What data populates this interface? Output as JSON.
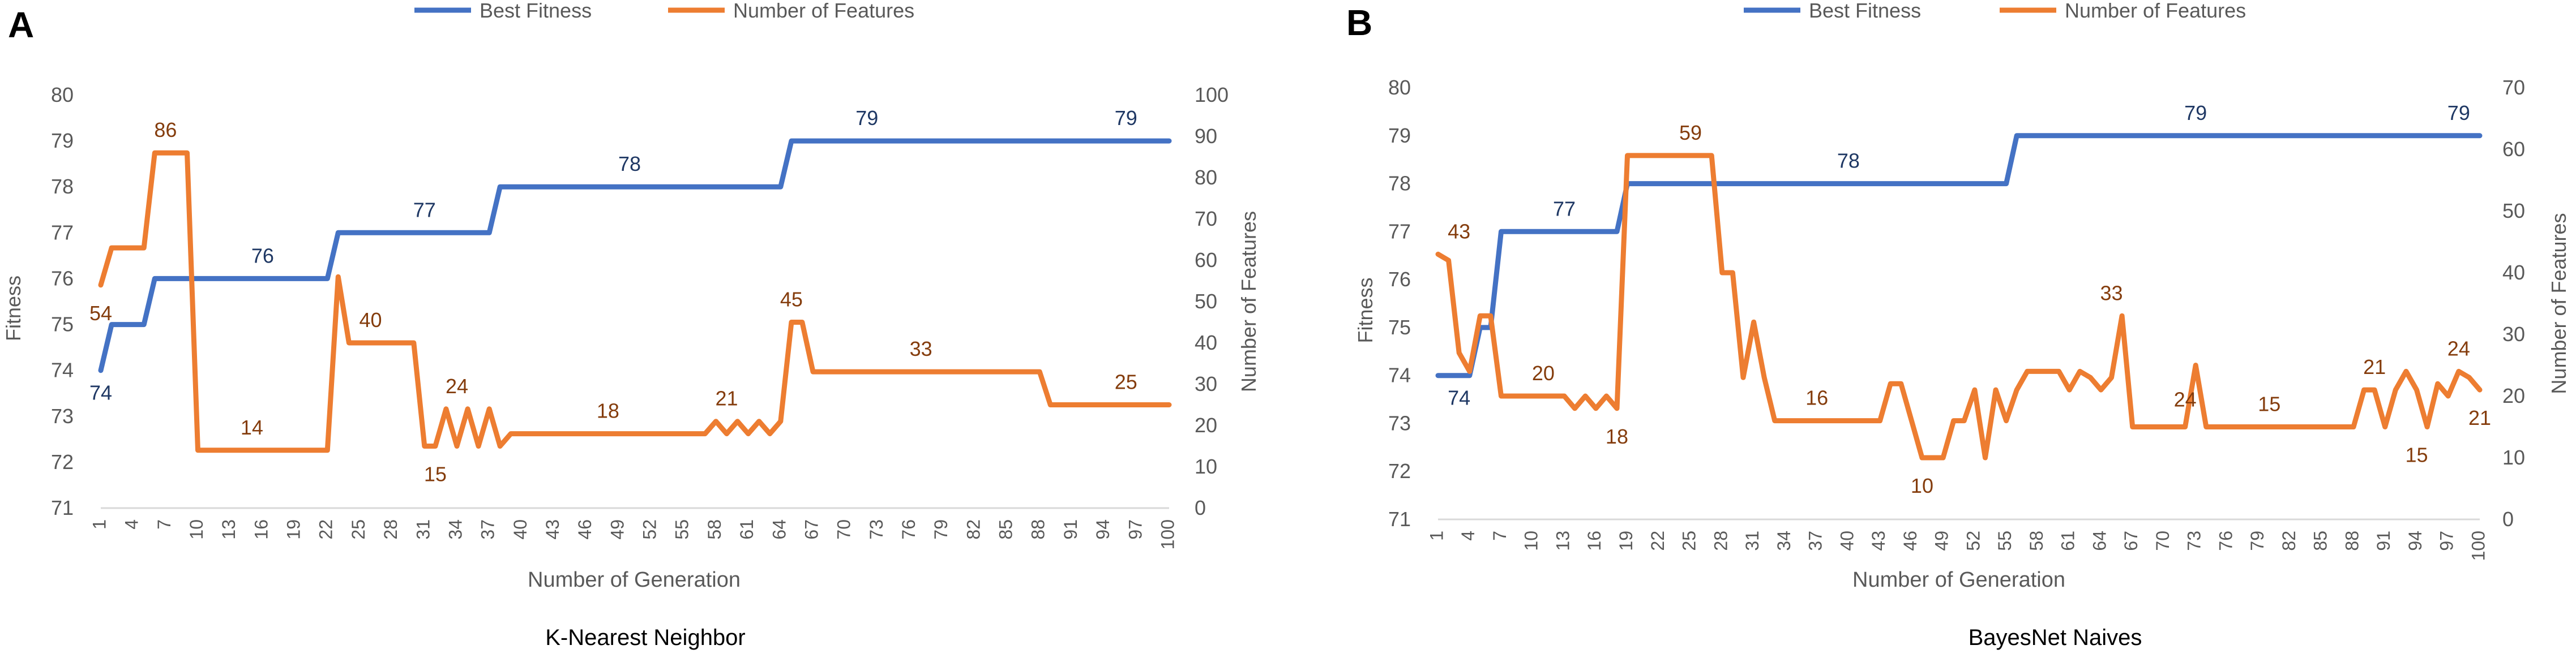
{
  "colors": {
    "fitness": "#4472C4",
    "features": "#ED7D31",
    "fitness_label": "#1F3864",
    "features_label": "#843C0C",
    "axis_text": "#595959",
    "grid": "#D9D9D9"
  },
  "legend": {
    "fitness": "Best Fitness",
    "features": "Number of Features"
  },
  "chart_data": [
    {
      "panel_letter": "A",
      "type": "line",
      "title": "K-Nearest Neighbor",
      "xlabel": "Number of Generation",
      "ylabel_left": "Fitness",
      "ylabel_right": "Number of Features",
      "xlim": [
        1,
        100
      ],
      "ylim_left": [
        71,
        80
      ],
      "ylim_right": [
        0,
        100
      ],
      "yticks_left": [
        71,
        72,
        73,
        74,
        75,
        76,
        77,
        78,
        79,
        80
      ],
      "yticks_right": [
        0,
        10,
        20,
        30,
        40,
        50,
        60,
        70,
        80,
        90,
        100
      ],
      "xticks": [
        1,
        4,
        7,
        10,
        13,
        16,
        19,
        22,
        25,
        28,
        31,
        34,
        37,
        40,
        43,
        46,
        49,
        52,
        55,
        58,
        61,
        64,
        67,
        70,
        73,
        76,
        79,
        82,
        85,
        88,
        91,
        94,
        97,
        100
      ],
      "grid": false,
      "series": [
        {
          "name": "Best Fitness",
          "axis": "left",
          "x": [
            1,
            2,
            4,
            5,
            6,
            7,
            22,
            23,
            37,
            38,
            64,
            65,
            100
          ],
          "y": [
            74,
            75,
            75,
            75,
            76,
            76,
            76,
            77,
            77,
            78,
            78,
            79,
            79
          ]
        },
        {
          "name": "Number of Features",
          "axis": "right",
          "x": [
            1,
            2,
            3,
            4,
            5,
            6,
            7,
            8,
            9,
            10,
            11,
            20,
            21,
            22,
            23,
            24,
            25,
            26,
            27,
            28,
            29,
            30,
            31,
            32,
            33,
            34,
            35,
            36,
            37,
            38,
            39,
            40,
            55,
            56,
            57,
            58,
            59,
            60,
            61,
            62,
            63,
            64,
            65,
            66,
            67,
            68,
            70,
            80,
            85,
            88,
            89,
            90,
            95,
            100
          ],
          "y": [
            54,
            63,
            63,
            63,
            63,
            86,
            86,
            86,
            86,
            14,
            14,
            14,
            14,
            14,
            56,
            40,
            40,
            40,
            40,
            40,
            40,
            40,
            15,
            15,
            24,
            15,
            24,
            15,
            24,
            15,
            18,
            18,
            18,
            18,
            18,
            21,
            18,
            21,
            18,
            21,
            18,
            21,
            45,
            45,
            33,
            33,
            33,
            33,
            33,
            33,
            25,
            25,
            25,
            25
          ]
        }
      ],
      "labels_fitness": [
        {
          "x": 1,
          "y": 74,
          "text": "74"
        },
        {
          "x": 16,
          "y": 76,
          "text": "76"
        },
        {
          "x": 31,
          "y": 77,
          "text": "77"
        },
        {
          "x": 50,
          "y": 78,
          "text": "78"
        },
        {
          "x": 72,
          "y": 79,
          "text": "79"
        },
        {
          "x": 96,
          "y": 79,
          "text": "79"
        }
      ],
      "labels_features": [
        {
          "x": 1,
          "y": 54,
          "text": "54"
        },
        {
          "x": 7,
          "y": 86,
          "text": "86"
        },
        {
          "x": 15,
          "y": 14,
          "text": "14"
        },
        {
          "x": 26,
          "y": 40,
          "text": "40"
        },
        {
          "x": 34,
          "y": 24,
          "text": "24"
        },
        {
          "x": 32,
          "y": 15,
          "text": "15"
        },
        {
          "x": 48,
          "y": 18,
          "text": "18"
        },
        {
          "x": 59,
          "y": 21,
          "text": "21"
        },
        {
          "x": 65,
          "y": 45,
          "text": "45"
        },
        {
          "x": 77,
          "y": 33,
          "text": "33"
        },
        {
          "x": 96,
          "y": 25,
          "text": "25"
        }
      ]
    },
    {
      "panel_letter": "B",
      "type": "line",
      "title": "BayesNet Naives",
      "xlabel": "Number of Generation",
      "ylabel_left": "Fitness",
      "ylabel_right": "Number of Features",
      "xlim": [
        1,
        100
      ],
      "ylim_left": [
        71,
        80
      ],
      "ylim_right": [
        0,
        70
      ],
      "yticks_left": [
        71,
        72,
        73,
        74,
        75,
        76,
        77,
        78,
        79,
        80
      ],
      "yticks_right": [
        0,
        10,
        20,
        30,
        40,
        50,
        60,
        70
      ],
      "xticks": [
        1,
        4,
        7,
        10,
        13,
        16,
        19,
        22,
        25,
        28,
        31,
        34,
        37,
        40,
        43,
        46,
        49,
        52,
        55,
        58,
        61,
        64,
        67,
        70,
        73,
        76,
        79,
        82,
        85,
        88,
        91,
        94,
        97,
        100
      ],
      "grid": false,
      "series": [
        {
          "name": "Best Fitness",
          "axis": "left",
          "x": [
            1,
            4,
            5,
            6,
            7,
            18,
            19,
            55,
            56,
            100
          ],
          "y": [
            74,
            74,
            75,
            75,
            77,
            77,
            78,
            78,
            79,
            79
          ]
        },
        {
          "name": "Number of Features",
          "axis": "right",
          "x": [
            1,
            2,
            3,
            4,
            5,
            6,
            7,
            8,
            9,
            10,
            11,
            12,
            13,
            14,
            15,
            16,
            17,
            18,
            19,
            20,
            21,
            22,
            23,
            24,
            25,
            26,
            27,
            28,
            29,
            30,
            31,
            32,
            33,
            34,
            35,
            36,
            37,
            38,
            39,
            40,
            41,
            42,
            43,
            44,
            45,
            46,
            47,
            48,
            49,
            50,
            51,
            52,
            53,
            54,
            55,
            56,
            57,
            58,
            59,
            60,
            61,
            62,
            63,
            64,
            65,
            66,
            67,
            68,
            69,
            70,
            71,
            72,
            73,
            74,
            75,
            76,
            77,
            78,
            79,
            80,
            81,
            82,
            83,
            84,
            85,
            86,
            87,
            88,
            89,
            90,
            91,
            92,
            93,
            94,
            95,
            96,
            97,
            98,
            99,
            100
          ],
          "y": [
            43,
            42,
            27,
            24,
            33,
            33,
            20,
            20,
            20,
            20,
            20,
            20,
            20,
            18,
            20,
            18,
            20,
            18,
            59,
            59,
            59,
            59,
            59,
            59,
            59,
            59,
            59,
            40,
            40,
            23,
            32,
            23,
            16,
            16,
            16,
            16,
            16,
            16,
            16,
            16,
            16,
            16,
            16,
            22,
            22,
            16,
            10,
            10,
            10,
            16,
            16,
            21,
            10,
            21,
            16,
            21,
            24,
            24,
            24,
            24,
            21,
            24,
            23,
            21,
            23,
            33,
            15,
            15,
            15,
            15,
            15,
            15,
            25,
            15,
            15,
            15,
            15,
            15,
            15,
            15,
            15,
            15,
            15,
            15,
            15,
            15,
            15,
            15,
            21,
            21,
            15,
            21,
            24,
            21,
            15,
            22,
            20,
            24,
            23,
            21
          ]
        }
      ],
      "labels_fitness": [
        {
          "x": 3,
          "y": 74,
          "text": "74"
        },
        {
          "x": 13,
          "y": 77,
          "text": "77"
        },
        {
          "x": 40,
          "y": 78,
          "text": "78"
        },
        {
          "x": 73,
          "y": 79,
          "text": "79"
        },
        {
          "x": 98,
          "y": 79,
          "text": "79"
        }
      ],
      "labels_features": [
        {
          "x": 3,
          "y": 43,
          "text": "43"
        },
        {
          "x": 11,
          "y": 20,
          "text": "20"
        },
        {
          "x": 18,
          "y": 18,
          "text": "18"
        },
        {
          "x": 25,
          "y": 59,
          "text": "59"
        },
        {
          "x": 37,
          "y": 16,
          "text": "16"
        },
        {
          "x": 47,
          "y": 10,
          "text": "10"
        },
        {
          "x": 65,
          "y": 33,
          "text": "33"
        },
        {
          "x": 72,
          "y": 24,
          "text": "24"
        },
        {
          "x": 80,
          "y": 15,
          "text": "15"
        },
        {
          "x": 90,
          "y": 21,
          "text": "21"
        },
        {
          "x": 94,
          "y": 15,
          "text": "15"
        },
        {
          "x": 98,
          "y": 24,
          "text": "24"
        },
        {
          "x": 100,
          "y": 21,
          "text": "21"
        }
      ]
    }
  ]
}
